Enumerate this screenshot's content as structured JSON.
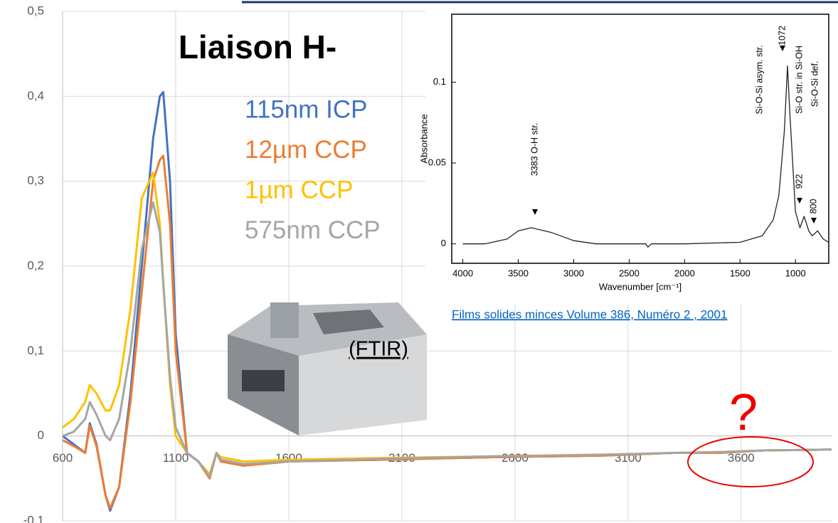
{
  "chart_data": [
    {
      "type": "line",
      "title": "Liaison H-",
      "annotations": [
        "(FTIR)",
        "?"
      ],
      "x": [
        600,
        650,
        700,
        720,
        750,
        790,
        810,
        850,
        900,
        950,
        1000,
        1030,
        1045,
        1075,
        1100,
        1150,
        1200,
        1250,
        1280,
        1300,
        1400,
        1600,
        2000,
        2500,
        3000,
        3300,
        3500,
        3700,
        4000
      ],
      "xlim": [
        600,
        4000
      ],
      "xticks": [
        600,
        1100,
        1600,
        2100,
        2600,
        3100,
        3600
      ],
      "ylim": [
        -0.1,
        0.5
      ],
      "yticks": [
        {
          "value": -0.1,
          "label": "-0,1"
        },
        0,
        {
          "value": 0.1,
          "label": "0,1"
        },
        {
          "value": 0.2,
          "label": "0,2"
        },
        {
          "value": 0.3,
          "label": "0,3"
        },
        {
          "value": 0.4,
          "label": "0,4"
        },
        {
          "value": 0.5,
          "label": "0,5"
        }
      ],
      "grid": true,
      "series": [
        {
          "name": "115nm ICP",
          "color": "#4472c4",
          "values": [
            0,
            -0.01,
            -0.02,
            0.015,
            -0.01,
            -0.07,
            -0.088,
            -0.06,
            0.05,
            0.2,
            0.35,
            0.4,
            0.405,
            0.3,
            0.12,
            -0.02,
            -0.03,
            -0.05,
            -0.02,
            -0.03,
            -0.035,
            -0.03,
            -0.028,
            -0.025,
            -0.023,
            -0.02,
            -0.02,
            -0.017,
            -0.016
          ]
        },
        {
          "name": "12µm CCP",
          "color": "#ed7d31",
          "values": [
            -0.005,
            -0.012,
            -0.02,
            0.012,
            -0.012,
            -0.07,
            -0.085,
            -0.06,
            0.04,
            0.17,
            0.3,
            0.325,
            0.33,
            0.25,
            0.1,
            -0.02,
            -0.03,
            -0.05,
            -0.02,
            -0.03,
            -0.035,
            -0.03,
            -0.028,
            -0.025,
            -0.023,
            -0.02,
            -0.02,
            -0.017,
            -0.016
          ]
        },
        {
          "name": "1µm CCP",
          "color": "#ffc000",
          "values": [
            0.01,
            0.02,
            0.04,
            0.06,
            0.05,
            0.03,
            0.03,
            0.06,
            0.15,
            0.28,
            0.31,
            0.25,
            0.18,
            0.06,
            0,
            -0.02,
            -0.03,
            -0.045,
            -0.02,
            -0.025,
            -0.03,
            -0.028,
            -0.026,
            -0.024,
            -0.022,
            -0.02,
            -0.019,
            -0.017,
            -0.016
          ]
        },
        {
          "name": "575nm CCP",
          "color": "#a5a5a5",
          "values": [
            0,
            0.005,
            0.02,
            0.04,
            0.025,
            0,
            -0.005,
            0.02,
            0.1,
            0.22,
            0.275,
            0.24,
            0.18,
            0.07,
            0.01,
            -0.02,
            -0.03,
            -0.048,
            -0.02,
            -0.028,
            -0.033,
            -0.03,
            -0.027,
            -0.024,
            -0.022,
            -0.02,
            -0.019,
            -0.017,
            -0.016
          ]
        }
      ]
    },
    {
      "type": "line",
      "xlabel": "Wavenumber [cm⁻¹]",
      "ylabel": "Absorbance",
      "source": "Films solides minces Volume 386, Numéro 2 , 2001",
      "annotations": [
        "3383  O-H str.",
        "Si-O-Si asym. str.",
        "1072",
        "Si-O str. in Si-OH",
        "Si-O-Si def.",
        "922",
        "800"
      ],
      "x": [
        4000,
        3800,
        3600,
        3500,
        3383,
        3200,
        3000,
        2800,
        2500,
        2350,
        2330,
        2300,
        2000,
        1500,
        1300,
        1200,
        1150,
        1100,
        1072,
        1050,
        1000,
        960,
        922,
        880,
        850,
        800,
        750,
        700
      ],
      "xlim": [
        4100,
        700
      ],
      "xticks": [
        4000,
        3500,
        3000,
        2500,
        2000,
        1500,
        1000
      ],
      "ylim": [
        -0.012,
        0.142
      ],
      "yticks": [
        0,
        0.05,
        0.1
      ],
      "series": [
        {
          "color": "#222222",
          "values": [
            0,
            0,
            0.003,
            0.008,
            0.01,
            0.007,
            0.002,
            0,
            0,
            0,
            -0.002,
            0,
            0,
            0.001,
            0.005,
            0.015,
            0.03,
            0.07,
            0.11,
            0.08,
            0.02,
            0.01,
            0.017,
            0.008,
            0.005,
            0.008,
            0.003,
            0.001
          ]
        }
      ]
    }
  ]
}
